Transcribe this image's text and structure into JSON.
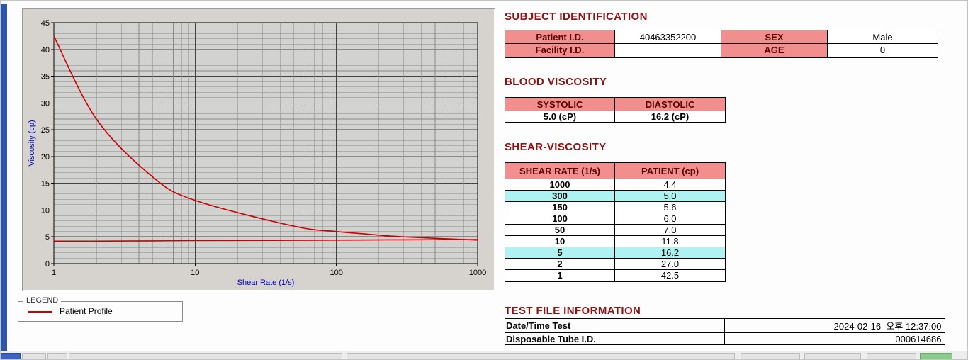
{
  "colors": {
    "heading": "#8e1212",
    "table_header_bg": "#f28e8e",
    "header_text": "#5a0000",
    "highlight_bg": "#aef2f2",
    "left_strip": "#2f55a8",
    "series": "#cc0000"
  },
  "sections": {
    "subject": {
      "title": "SUBJECT IDENTIFICATION",
      "rows": [
        {
          "label1": "Patient I.D.",
          "value1": "40463352200",
          "label2": "SEX",
          "value2": "Male"
        },
        {
          "label1": "Facility I.D.",
          "value1": "",
          "label2": "AGE",
          "value2": "0"
        }
      ]
    },
    "blood_viscosity": {
      "title": "BLOOD VISCOSITY",
      "headers": [
        "SYSTOLIC",
        "DIASTOLIC"
      ],
      "values": [
        "5.0 (cP)",
        "16.2 (cP)"
      ]
    },
    "shear_viscosity": {
      "title": "SHEAR-VISCOSITY",
      "headers": [
        "SHEAR RATE (1/s)",
        "PATIENT (cp)"
      ],
      "rows": [
        {
          "rate": "1000",
          "value": "4.4",
          "highlight": false
        },
        {
          "rate": "300",
          "value": "5.0",
          "highlight": true
        },
        {
          "rate": "150",
          "value": "5.6",
          "highlight": false
        },
        {
          "rate": "100",
          "value": "6.0",
          "highlight": false
        },
        {
          "rate": "50",
          "value": "7.0",
          "highlight": false
        },
        {
          "rate": "10",
          "value": "11.8",
          "highlight": false
        },
        {
          "rate": "5",
          "value": "16.2",
          "highlight": true
        },
        {
          "rate": "2",
          "value": "27.0",
          "highlight": false
        },
        {
          "rate": "1",
          "value": "42.5",
          "highlight": false
        }
      ]
    },
    "test_file": {
      "title": "TEST FILE INFORMATION",
      "rows": [
        {
          "label": "Date/Time Test",
          "value": "2024-02-16  오후 12:37:00"
        },
        {
          "label": "Disposable Tube I.D.",
          "value": "000614686"
        }
      ]
    }
  },
  "legend": {
    "box_label": "LEGEND",
    "entries": [
      {
        "label": "Patient Profile",
        "color": "#cc0000"
      }
    ]
  },
  "chart_data": {
    "type": "line",
    "title": "",
    "xlabel": "Shear Rate (1/s)",
    "ylabel": "Viscosity (cp)",
    "x_scale": "log",
    "xlim": [
      1,
      1000
    ],
    "ylim": [
      0,
      45
    ],
    "x_ticks": [
      1,
      10,
      100,
      1000
    ],
    "y_ticks": [
      0,
      5,
      10,
      15,
      20,
      25,
      30,
      35,
      40,
      45
    ],
    "grid": true,
    "axis_label_color": "#0000bb",
    "legend_position": "below-left",
    "series": [
      {
        "name": "Patient Profile",
        "color": "#cc0000",
        "x": [
          1,
          2,
          5,
          10,
          50,
          100,
          150,
          300,
          1000
        ],
        "y": [
          42.5,
          27.0,
          16.2,
          11.8,
          7.0,
          6.0,
          5.6,
          5.0,
          4.4
        ]
      },
      {
        "name": "",
        "color": "#cc0000",
        "x": [
          1,
          2,
          5,
          10,
          50,
          100,
          300,
          1000
        ],
        "y": [
          4.2,
          4.2,
          4.25,
          4.3,
          4.35,
          4.4,
          4.45,
          4.5
        ]
      }
    ]
  }
}
